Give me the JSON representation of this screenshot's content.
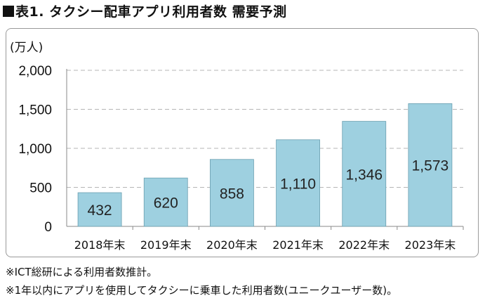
{
  "title": "表1. タクシー配車アプリ利用者数 需要予測",
  "notes": [
    "※ICT総研による利用者数推計。",
    "※1年以内にアプリを使用してタクシーに乗車した利用者数(ユニークユーザー数)。"
  ],
  "colors": {
    "bar": "#9ed0e0",
    "bar_stroke": "#6a9fb0",
    "grid": "#b5b5b5",
    "axis": "#8a8a8a"
  },
  "chart_data": {
    "type": "bar",
    "unit_label": "(万人)",
    "categories": [
      "2018年末",
      "2019年末",
      "2020年末",
      "2021年末",
      "2022年末",
      "2023年末"
    ],
    "values": [
      432,
      620,
      858,
      1110,
      1346,
      1573
    ],
    "value_labels": [
      "432",
      "620",
      "858",
      "1,110",
      "1,346",
      "1,573"
    ],
    "y_ticks": [
      0,
      500,
      1000,
      1500,
      2000
    ],
    "y_tick_labels": [
      "0",
      "500",
      "1,000",
      "1,500",
      "2,000"
    ],
    "ylim": [
      0,
      2000
    ],
    "grid": true,
    "legend": "none"
  }
}
